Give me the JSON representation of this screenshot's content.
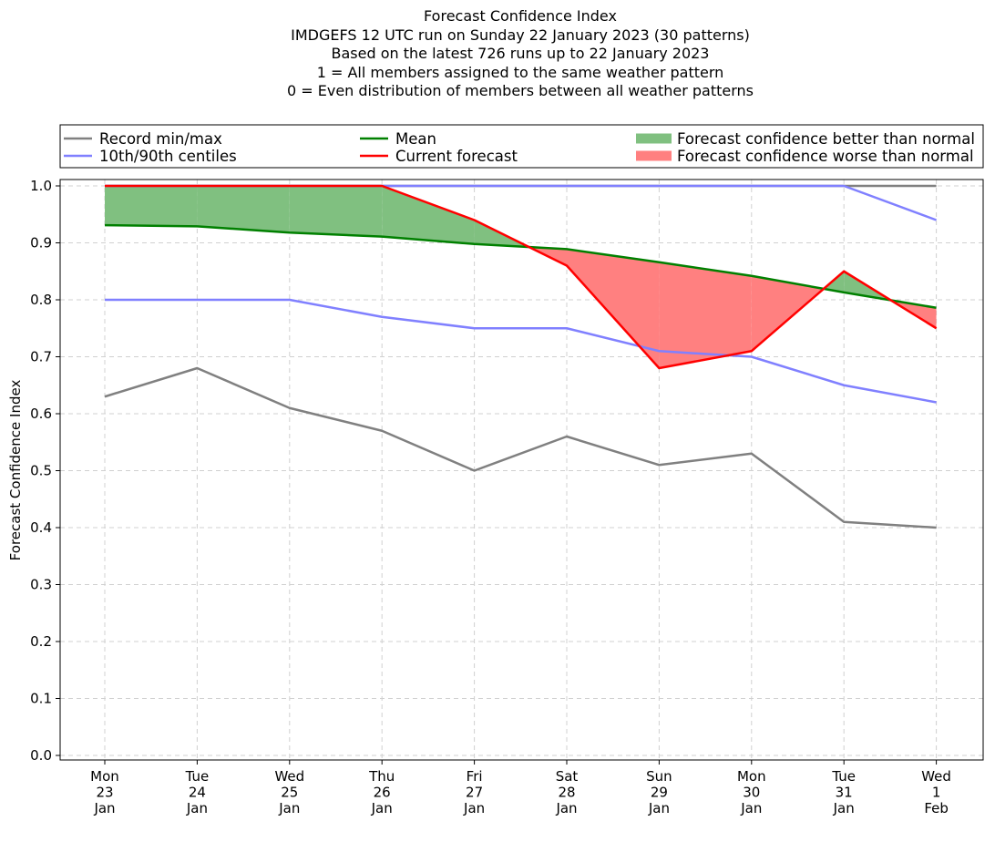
{
  "chart_data": {
    "type": "line",
    "title": "Forecast Confidence Index",
    "subtitle_lines": [
      "IMDGEFS 12 UTC run on Sunday 22 January 2023 (30 patterns)",
      "Based on the latest 726 runs up to 22 January 2023",
      "1 = All members assigned to the same weather pattern",
      "0 = Even distribution of members between all weather patterns"
    ],
    "ylabel": "Forecast Confidence Index",
    "xlabel": "",
    "ylim": [
      0.0,
      1.0
    ],
    "yticks": [
      "0.0",
      "0.1",
      "0.2",
      "0.3",
      "0.4",
      "0.5",
      "0.6",
      "0.7",
      "0.8",
      "0.9",
      "1.0"
    ],
    "grid": true,
    "legend_position": "top",
    "categories": [
      [
        "Mon",
        "23",
        "Jan"
      ],
      [
        "Tue",
        "24",
        "Jan"
      ],
      [
        "Wed",
        "25",
        "Jan"
      ],
      [
        "Thu",
        "26",
        "Jan"
      ],
      [
        "Fri",
        "27",
        "Jan"
      ],
      [
        "Sat",
        "28",
        "Jan"
      ],
      [
        "Sun",
        "29",
        "Jan"
      ],
      [
        "Mon",
        "30",
        "Jan"
      ],
      [
        "Tue",
        "31",
        "Jan"
      ],
      [
        "Wed",
        "1",
        "Feb"
      ]
    ],
    "series": [
      {
        "name": "Record min/max",
        "role": "record_min",
        "color": "#808080",
        "values": [
          0.63,
          0.68,
          0.61,
          0.57,
          0.5,
          0.56,
          0.51,
          0.53,
          0.41,
          0.4
        ]
      },
      {
        "name": "Record min/max",
        "role": "record_max",
        "color": "#808080",
        "values": [
          1.0,
          1.0,
          1.0,
          1.0,
          1.0,
          1.0,
          1.0,
          1.0,
          1.0,
          1.0
        ]
      },
      {
        "name": "10th/90th centiles",
        "role": "p10",
        "color": "#8080ff",
        "values": [
          0.8,
          0.8,
          0.8,
          0.77,
          0.75,
          0.75,
          0.71,
          0.7,
          0.65,
          0.62
        ]
      },
      {
        "name": "10th/90th centiles",
        "role": "p90",
        "color": "#8080ff",
        "values": [
          1.0,
          1.0,
          1.0,
          1.0,
          1.0,
          1.0,
          1.0,
          1.0,
          1.0,
          0.94
        ]
      },
      {
        "name": "Mean",
        "role": "mean",
        "color": "#008000",
        "values": [
          0.931,
          0.929,
          0.918,
          0.911,
          0.898,
          0.889,
          0.866,
          0.842,
          0.813,
          0.786
        ]
      },
      {
        "name": "Current forecast",
        "role": "current",
        "color": "#ff0000",
        "values": [
          1.0,
          1.0,
          1.0,
          1.0,
          0.94,
          0.86,
          0.68,
          0.71,
          0.85,
          0.75
        ]
      }
    ],
    "fills": [
      {
        "name": "Forecast confidence better than normal",
        "color": "#80c080"
      },
      {
        "name": "Forecast confidence worse than normal",
        "color": "#ff8080"
      }
    ],
    "legend": [
      {
        "label": "Record min/max",
        "kind": "line",
        "color": "#808080"
      },
      {
        "label": "10th/90th centiles",
        "kind": "line",
        "color": "#8080ff"
      },
      {
        "label": "Mean",
        "kind": "line",
        "color": "#008000"
      },
      {
        "label": "Current forecast",
        "kind": "line",
        "color": "#ff0000"
      },
      {
        "label": "Forecast confidence better than normal",
        "kind": "patch",
        "color": "#80c080"
      },
      {
        "label": "Forecast confidence worse than normal",
        "kind": "patch",
        "color": "#ff8080"
      }
    ]
  }
}
